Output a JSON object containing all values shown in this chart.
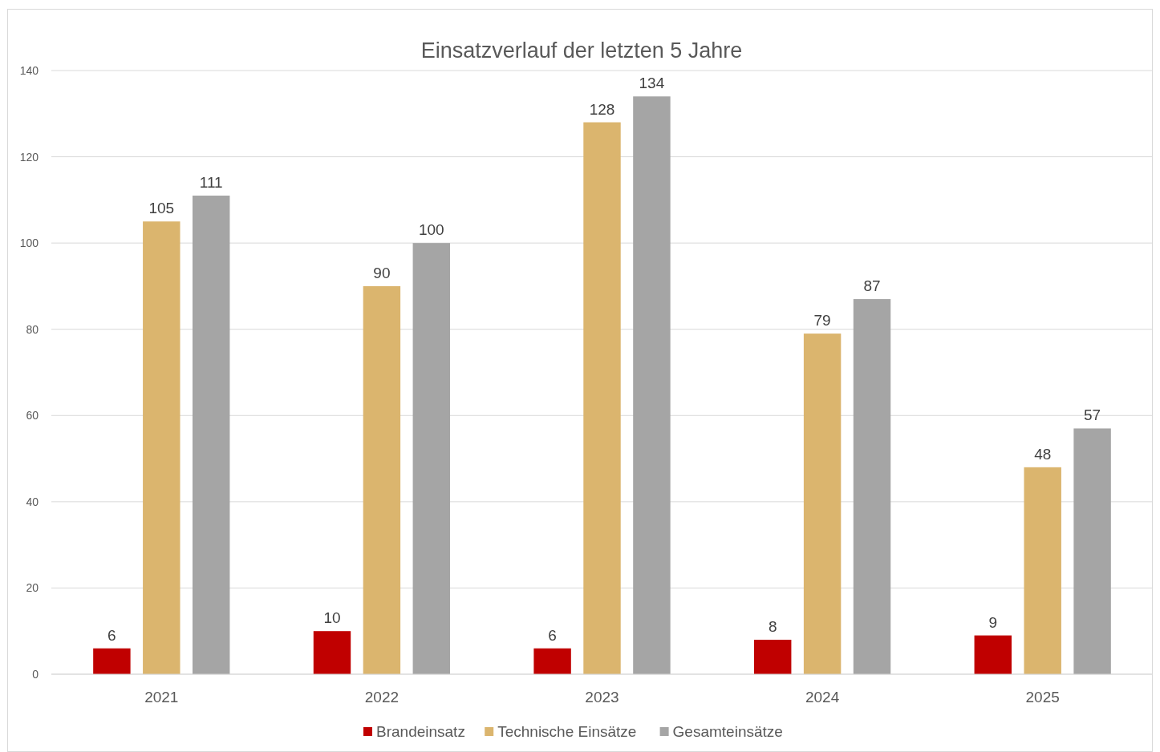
{
  "chart_data": {
    "type": "bar",
    "title": "Einsatzverlauf der letzten 5 Jahre",
    "categories": [
      "2021",
      "2022",
      "2023",
      "2024",
      "2025"
    ],
    "series": [
      {
        "name": "Brandeinsatz",
        "color": "#c00000",
        "values": [
          6,
          10,
          6,
          8,
          9
        ]
      },
      {
        "name": "Technische Einsätze",
        "color": "#dbb56e",
        "values": [
          105,
          90,
          128,
          79,
          48
        ]
      },
      {
        "name": "Gesamteinsätze",
        "color": "#a5a5a5",
        "values": [
          111,
          100,
          134,
          87,
          57
        ]
      }
    ],
    "ylim": [
      0,
      140
    ],
    "yticks": [
      0,
      20,
      40,
      60,
      80,
      100,
      120,
      140
    ],
    "grid": "y",
    "legend": "bottom",
    "data_labels": true
  }
}
